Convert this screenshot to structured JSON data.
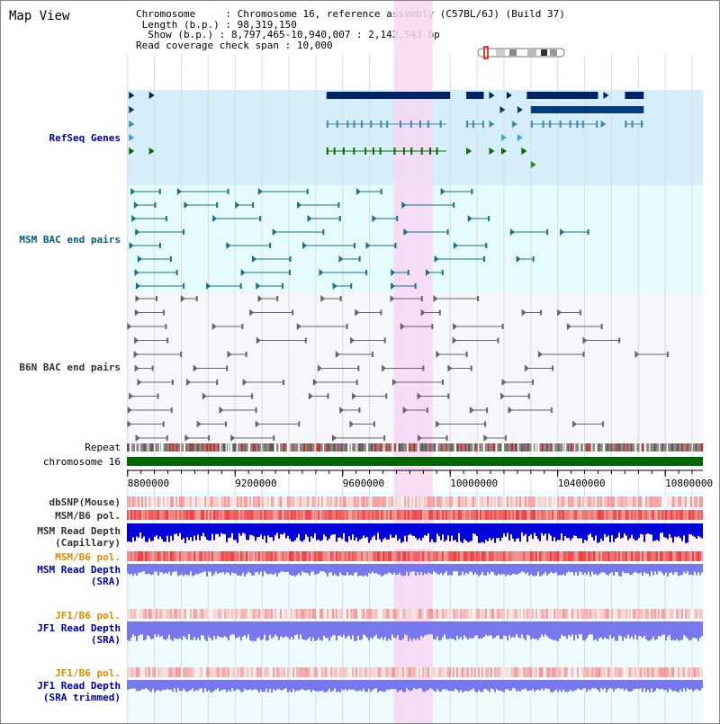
{
  "view": {
    "title": "Map View",
    "info": {
      "chromosome_label": "Chromosome",
      "chromosome_value": "Chromosome 16, reference assembly (C57BL/6J) (Build 37)",
      "length_label": "Length (b.p.)",
      "length_value": "98,319,150",
      "show_label": "Show (b.p.)",
      "show_value": "8,797,465-10,940,007 : 2,142,543 bp",
      "span_label": "Read coverage check span",
      "span_value": "10,000"
    }
  },
  "tracks": {
    "refseq": "RefSeq Genes",
    "msm_bac": "MSM BAC end pairs",
    "b6n_bac": "B6N BAC end pairs",
    "repeat": "Repeat",
    "chromosome": "chromosome 16",
    "dbsnp": "dbSNP(Mouse)",
    "msm_b6_pol": "MSM/B6 pol.",
    "msm_depth_cap_1": "MSM Read Depth",
    "msm_depth_cap_2": "(Capillary)",
    "msm_b6_pol_2": "MSM/B6 pol.",
    "msm_depth_sra_1": "MSM Read Depth",
    "msm_depth_sra_2": "(SRA)",
    "jf1_b6_pol": "JF1/B6 pol.",
    "jf1_depth_sra_1": "JF1 Read Depth",
    "jf1_depth_sra_2": "(SRA)",
    "jf1_b6_pol_2": "JF1/B6 pol.",
    "jf1_depth_trim_1": "JF1 Read Depth",
    "jf1_depth_trim_2": "(SRA trimmed)"
  },
  "axis": {
    "ticks": [
      "8800000",
      "9200000",
      "9600000",
      "10000000",
      "10400000",
      "10800000"
    ],
    "tick_values": [
      8800000,
      9200000,
      9600000,
      10000000,
      10400000,
      10800000
    ],
    "range": [
      8797465,
      10940007
    ]
  },
  "highlight": {
    "start": 9790000,
    "end": 9935000,
    "color": "#f7d7f3"
  },
  "colors": {
    "refseq_bg": "#d6eefa",
    "msm_bg": "#e6fbfd",
    "b6n_bg": "#f6f6fb",
    "lower_bg": "#eefbff",
    "chromosome_bar": "#006600",
    "depth_dark": "#0000dd",
    "depth_light": "#7777ee",
    "pol_red": "#ee3333",
    "label_blue": "#0000aa",
    "label_orange": "#e08a00"
  }
}
